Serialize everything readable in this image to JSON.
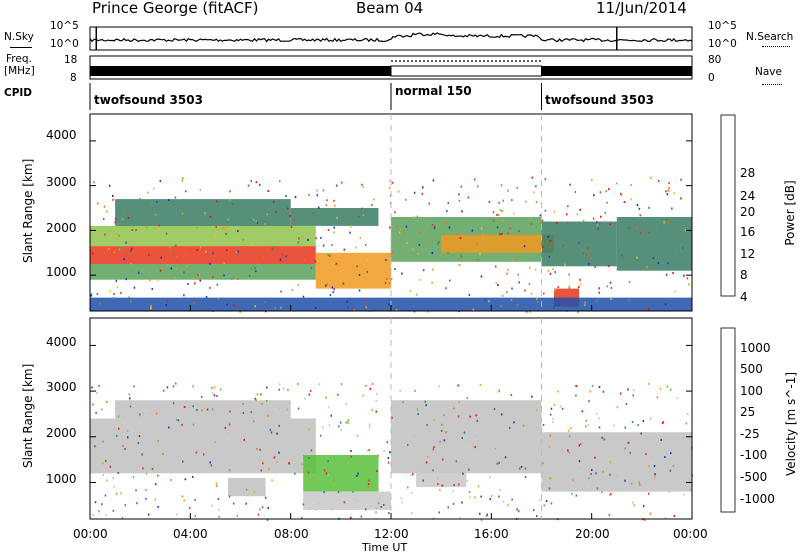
{
  "header": {
    "station": "Prince George (fitACF)",
    "beam": "Beam 04",
    "date": "11/Jun/2014"
  },
  "summary_panels": {
    "nsky_label": "N.Sky",
    "nsearch_label": "N.Search",
    "freq_label_1": "Freq.",
    "freq_label_2": "[MHz]",
    "nave_label": "Nave",
    "cpid_label": "CPID",
    "noise_left_ticks": [
      "10^5",
      "10^0"
    ],
    "noise_right_ticks": [
      "10^5",
      "10^0"
    ],
    "freq_ticks": [
      "18",
      "8"
    ],
    "nave_ticks": [
      "80",
      "0"
    ],
    "cpid_segments": [
      {
        "label": "twofsound 3503",
        "start": 0,
        "end": 12
      },
      {
        "label": "normal 150",
        "start": 12,
        "end": 18
      },
      {
        "label": "twofsound 3503",
        "start": 18,
        "end": 24
      }
    ]
  },
  "colors": {
    "power_scale": [
      "#1e1ee6",
      "#1f4fa8",
      "#3a7d63",
      "#5aa05a",
      "#8fc24a",
      "#f0c020",
      "#f09a20",
      "#f06a1a",
      "#e8361a",
      "#e0101a"
    ],
    "velocity_scale": [
      "#1e3cb4",
      "#2d6fa0",
      "#3a8a5a",
      "#58c03a",
      "#c8c8c8",
      "#c0c0c0",
      "#f0a01a",
      "#f07a1a",
      "#e8361a",
      "#e0101a"
    ]
  },
  "chart_data": [
    {
      "type": "heatmap",
      "name": "power",
      "x_unit": "hours UT",
      "xlim": [
        0,
        24
      ],
      "ylim": [
        200,
        4600
      ],
      "ylabel": "Slant Range [km]",
      "yticks": [
        "4000",
        "3000",
        "2000",
        "1000"
      ],
      "colorbar_label": "Power [dB]",
      "colorbar_ticks": [
        "28",
        "24",
        "20",
        "16",
        "12",
        "8",
        "4"
      ],
      "colorbar_range": [
        0,
        30
      ],
      "bands": [
        {
          "t0": 0,
          "t1": 9,
          "r0": 1250,
          "r1": 1650,
          "v": 26
        },
        {
          "t0": 0,
          "t1": 9,
          "r0": 1650,
          "r1": 2100,
          "v": 14
        },
        {
          "t0": 0,
          "t1": 9,
          "r0": 900,
          "r1": 1250,
          "v": 10
        },
        {
          "t0": 1,
          "t1": 8,
          "r0": 2100,
          "r1": 2700,
          "v": 6
        },
        {
          "t0": 9,
          "t1": 12,
          "r0": 700,
          "r1": 1500,
          "v": 20
        },
        {
          "t0": 8,
          "t1": 11.5,
          "r0": 2100,
          "r1": 2500,
          "v": 8
        },
        {
          "t0": 12,
          "t1": 18,
          "r0": 1300,
          "r1": 2300,
          "v": 10
        },
        {
          "t0": 14,
          "t1": 18.5,
          "r0": 1500,
          "r1": 1900,
          "v": 20
        },
        {
          "t0": 18,
          "t1": 21,
          "r0": 1200,
          "r1": 2200,
          "v": 6
        },
        {
          "t0": 18.5,
          "t1": 19.5,
          "r0": 300,
          "r1": 700,
          "v": 24
        },
        {
          "t0": 21,
          "t1": 24,
          "r0": 1100,
          "r1": 2300,
          "v": 7
        },
        {
          "t0": 0,
          "t1": 24,
          "r0": 200,
          "r1": 500,
          "v": 5
        }
      ]
    },
    {
      "type": "heatmap",
      "name": "velocity",
      "x_unit": "hours UT",
      "xlim": [
        0,
        24
      ],
      "ylim": [
        200,
        4600
      ],
      "xlabel": "Time UT",
      "xticks": [
        "00:00",
        "04:00",
        "08:00",
        "12:00",
        "16:00",
        "20:00",
        "00:00"
      ],
      "ylabel": "Slant Range [km]",
      "yticks": [
        "4000",
        "3000",
        "2000",
        "1000"
      ],
      "colorbar_label": "Velocity [m s^-1]",
      "colorbar_ticks": [
        "1000",
        "500",
        "100",
        "25",
        "-25",
        "-100",
        "-500",
        "-1000"
      ],
      "colorbar_range": [
        -1000,
        1000
      ],
      "bands": [
        {
          "t0": 0,
          "t1": 9,
          "r0": 1200,
          "r1": 2400,
          "v": 0
        },
        {
          "t0": 1,
          "t1": 8,
          "r0": 2400,
          "r1": 2800,
          "v": 0
        },
        {
          "t0": 5.5,
          "t1": 7,
          "r0": 700,
          "r1": 1100,
          "v": -150
        },
        {
          "t0": 8.5,
          "t1": 11.5,
          "r0": 800,
          "r1": 1600,
          "v": 300
        },
        {
          "t0": 8.5,
          "t1": 12,
          "r0": 400,
          "r1": 800,
          "v": 120
        },
        {
          "t0": 12,
          "t1": 18,
          "r0": 1200,
          "r1": 2800,
          "v": 0
        },
        {
          "t0": 13,
          "t1": 15,
          "r0": 900,
          "r1": 1400,
          "v": 120
        },
        {
          "t0": 18,
          "t1": 24,
          "r0": 800,
          "r1": 2100,
          "v": 0
        }
      ]
    }
  ]
}
